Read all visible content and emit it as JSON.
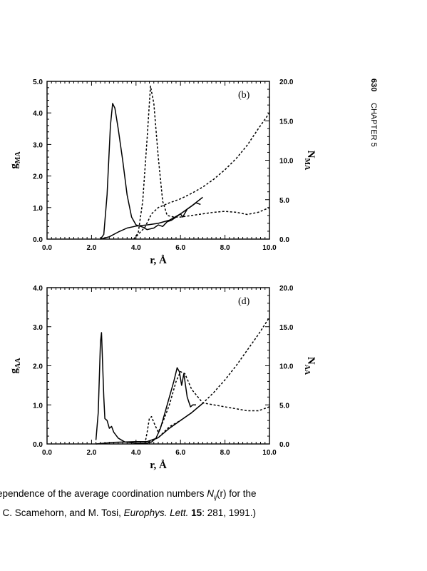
{
  "page": {
    "page_number": "630",
    "chapter": "CHAPTER 5"
  },
  "figure": {
    "caption_line1_a": "ependence of the average coordination numbers ",
    "caption_line1_sym": "N",
    "caption_line1_sub": "ij",
    "caption_line1_b": "(r) for the",
    "caption_line2_a": ", C. Scamehorn, and M. Tosi, ",
    "caption_line2_journal": "Europhys. Lett.",
    "caption_line2_vol": "15",
    "caption_line2_b": ": 281, 1991.)"
  },
  "chart_data": [
    {
      "type": "line",
      "panel_label": "(b)",
      "xlabel": "r, Å",
      "ylabel_left": "g",
      "ylabel_left_sub": "MA",
      "ylabel_right": "N",
      "ylabel_right_sub": "MA",
      "xlim": [
        0,
        10
      ],
      "ylim_left": [
        0,
        5
      ],
      "ylim_right": [
        0,
        20
      ],
      "x_ticks": [
        "0.0",
        "2.0",
        "4.0",
        "6.0",
        "8.0",
        "10.0"
      ],
      "y_ticks_left": [
        "0.0",
        "1.0",
        "2.0",
        "3.0",
        "4.0",
        "5.0"
      ],
      "y_ticks_right": [
        "0.0",
        "5.0",
        "10.0",
        "15.0",
        "20.0"
      ],
      "series": [
        {
          "style": "solid",
          "axis": "left",
          "points": [
            [
              2.4,
              0
            ],
            [
              2.55,
              0.15
            ],
            [
              2.7,
              1.4
            ],
            [
              2.85,
              3.6
            ],
            [
              2.95,
              4.3
            ],
            [
              3.05,
              4.15
            ],
            [
              3.2,
              3.5
            ],
            [
              3.4,
              2.5
            ],
            [
              3.6,
              1.4
            ],
            [
              3.8,
              0.7
            ],
            [
              4.0,
              0.45
            ],
            [
              4.3,
              0.38
            ],
            [
              4.5,
              0.3
            ],
            [
              4.8,
              0.35
            ],
            [
              5.0,
              0.45
            ],
            [
              5.2,
              0.4
            ],
            [
              5.4,
              0.55
            ],
            [
              5.6,
              0.6
            ],
            [
              5.8,
              0.7
            ],
            [
              6.0,
              0.8
            ],
            [
              6.1,
              0.7
            ],
            [
              6.3,
              0.95
            ],
            [
              6.5,
              1.05
            ],
            [
              6.7,
              1.15
            ],
            [
              6.9,
              1.1
            ]
          ]
        },
        {
          "style": "solid",
          "axis": "right",
          "points": [
            [
              2.4,
              0
            ],
            [
              2.8,
              0.3
            ],
            [
              3.2,
              0.9
            ],
            [
              3.6,
              1.4
            ],
            [
              4.0,
              1.65
            ],
            [
              4.5,
              1.8
            ],
            [
              5.0,
              2.0
            ],
            [
              5.5,
              2.4
            ],
            [
              6.0,
              3.2
            ],
            [
              6.5,
              4.2
            ],
            [
              7.0,
              5.3
            ]
          ]
        },
        {
          "style": "dashed",
          "axis": "left",
          "points": [
            [
              3.9,
              0
            ],
            [
              4.1,
              0.2
            ],
            [
              4.3,
              1.2
            ],
            [
              4.5,
              3.2
            ],
            [
              4.65,
              4.85
            ],
            [
              4.8,
              4.3
            ],
            [
              5.0,
              2.6
            ],
            [
              5.2,
              1.2
            ],
            [
              5.4,
              0.75
            ],
            [
              5.7,
              0.7
            ],
            [
              6.0,
              0.7
            ],
            [
              6.5,
              0.75
            ],
            [
              7.0,
              0.8
            ],
            [
              7.5,
              0.85
            ],
            [
              8.0,
              0.88
            ],
            [
              8.5,
              0.85
            ],
            [
              9.0,
              0.78
            ],
            [
              9.5,
              0.85
            ],
            [
              10.0,
              1.0
            ]
          ]
        },
        {
          "style": "dashed",
          "axis": "right",
          "points": [
            [
              3.9,
              0
            ],
            [
              4.4,
              1.5
            ],
            [
              4.7,
              3.2
            ],
            [
              5.0,
              4.0
            ],
            [
              5.5,
              4.6
            ],
            [
              6.0,
              5.1
            ],
            [
              6.5,
              5.8
            ],
            [
              7.0,
              6.6
            ],
            [
              7.5,
              7.6
            ],
            [
              8.0,
              8.8
            ],
            [
              8.5,
              10.2
            ],
            [
              9.0,
              11.9
            ],
            [
              9.5,
              14.0
            ],
            [
              10.0,
              16.0
            ]
          ]
        }
      ]
    },
    {
      "type": "line",
      "panel_label": "(d)",
      "xlabel": "r, Å",
      "ylabel_left": "g",
      "ylabel_left_sub": "AA",
      "ylabel_right": "N",
      "ylabel_right_sub": "AA",
      "xlim": [
        0,
        10
      ],
      "ylim_left": [
        0,
        4
      ],
      "ylim_right": [
        0,
        20
      ],
      "x_ticks": [
        "0.0",
        "2.0",
        "4.0",
        "6.0",
        "8.0",
        "10.0"
      ],
      "y_ticks_left": [
        "0.0",
        "1.0",
        "2.0",
        "3.0",
        "4.0"
      ],
      "y_ticks_right": [
        "0.0",
        "5.0",
        "10.0",
        "15.0",
        "20.0"
      ],
      "series": [
        {
          "style": "solid",
          "axis": "left",
          "points": [
            [
              2.2,
              0.1
            ],
            [
              2.3,
              0.8
            ],
            [
              2.4,
              2.6
            ],
            [
              2.45,
              2.85
            ],
            [
              2.55,
              1.2
            ],
            [
              2.6,
              0.65
            ],
            [
              2.7,
              0.6
            ],
            [
              2.8,
              0.4
            ],
            [
              2.9,
              0.45
            ],
            [
              3.0,
              0.3
            ],
            [
              3.2,
              0.15
            ],
            [
              3.5,
              0.05
            ],
            [
              4.0,
              0.02
            ],
            [
              4.5,
              0.02
            ],
            [
              4.7,
              0.05
            ],
            [
              4.9,
              0.15
            ],
            [
              5.1,
              0.4
            ],
            [
              5.3,
              0.8
            ],
            [
              5.5,
              1.2
            ],
            [
              5.7,
              1.6
            ],
            [
              5.85,
              1.95
            ],
            [
              5.95,
              1.85
            ],
            [
              6.05,
              1.5
            ],
            [
              6.15,
              1.8
            ],
            [
              6.3,
              1.2
            ],
            [
              6.45,
              0.95
            ],
            [
              6.55,
              1.0
            ],
            [
              6.7,
              1.0
            ]
          ]
        },
        {
          "style": "solid",
          "axis": "right",
          "points": [
            [
              2.2,
              0
            ],
            [
              3.0,
              0.2
            ],
            [
              4.0,
              0.3
            ],
            [
              4.5,
              0.3
            ],
            [
              5.0,
              0.8
            ],
            [
              5.5,
              2.0
            ],
            [
              6.0,
              3.0
            ],
            [
              6.5,
              4.0
            ],
            [
              7.0,
              5.2
            ]
          ]
        },
        {
          "style": "dashed",
          "axis": "left",
          "points": [
            [
              4.4,
              0
            ],
            [
              4.5,
              0.3
            ],
            [
              4.6,
              0.65
            ],
            [
              4.7,
              0.7
            ],
            [
              4.8,
              0.55
            ],
            [
              5.0,
              0.3
            ],
            [
              5.2,
              0.55
            ],
            [
              5.5,
              1.0
            ],
            [
              5.8,
              1.6
            ],
            [
              6.0,
              1.85
            ],
            [
              6.2,
              1.8
            ],
            [
              6.5,
              1.4
            ],
            [
              7.0,
              1.05
            ],
            [
              7.5,
              1.0
            ],
            [
              8.0,
              0.95
            ],
            [
              8.5,
              0.9
            ],
            [
              9.0,
              0.85
            ],
            [
              9.5,
              0.85
            ],
            [
              10.0,
              0.95
            ]
          ]
        },
        {
          "style": "dashed",
          "axis": "right",
          "points": [
            [
              4.4,
              0
            ],
            [
              5.0,
              0.8
            ],
            [
              5.5,
              2.2
            ],
            [
              6.0,
              3.0
            ],
            [
              6.5,
              4.0
            ],
            [
              7.0,
              5.2
            ],
            [
              7.5,
              6.6
            ],
            [
              8.0,
              8.2
            ],
            [
              8.5,
              10.0
            ],
            [
              9.0,
              12.0
            ],
            [
              9.5,
              14.0
            ],
            [
              10.0,
              16.2
            ]
          ]
        }
      ]
    }
  ]
}
